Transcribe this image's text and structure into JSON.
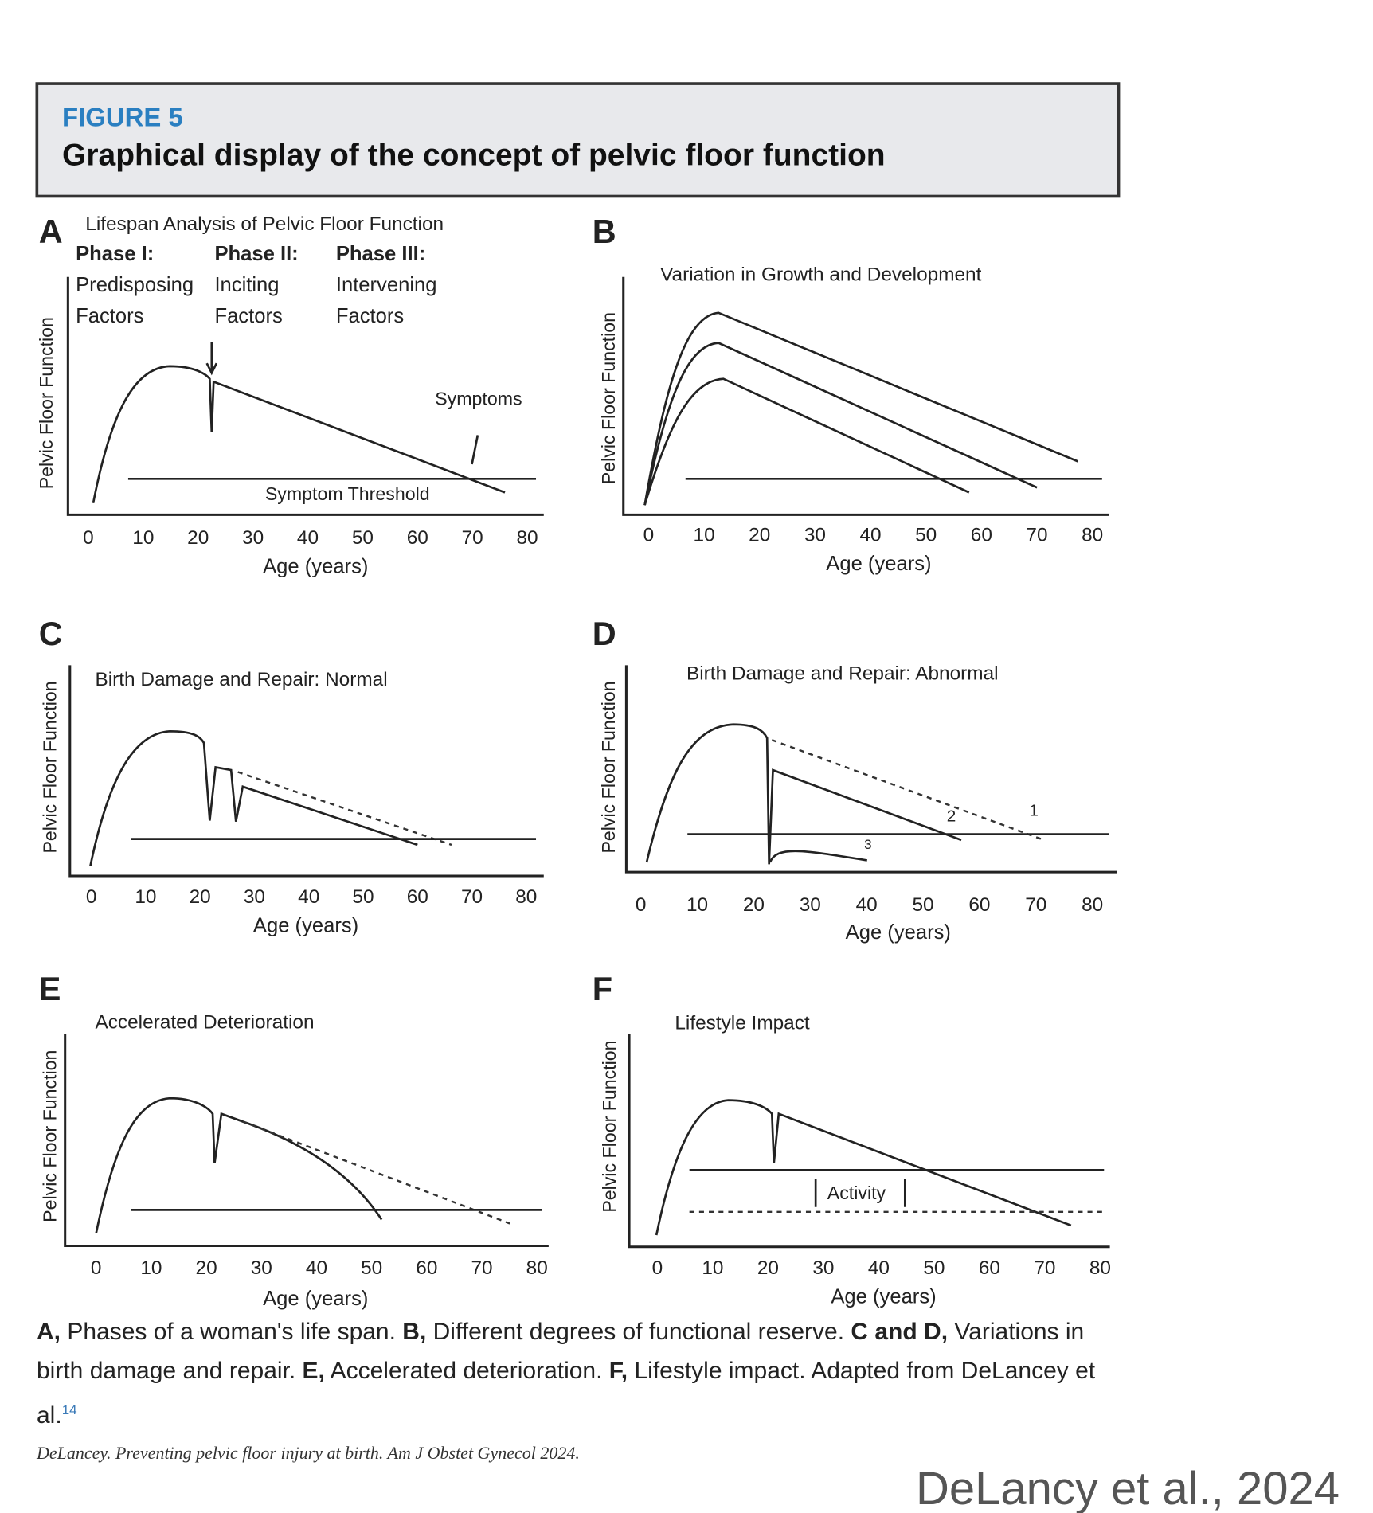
{
  "figure": {
    "label": "FIGURE 5",
    "title": "Graphical display of the concept of pelvic floor function"
  },
  "panels": [
    {
      "letter": "A",
      "title": "Lifespan Analysis of Pelvic Floor Function",
      "y_label": "Pelvic Floor Function",
      "x_label": "Age (years)",
      "x_ticks": [
        0,
        10,
        20,
        30,
        40,
        50,
        60,
        70,
        80
      ],
      "phases": [
        {
          "name": "Phase I:",
          "lines": [
            "Predisposing",
            "Factors"
          ]
        },
        {
          "name": "Phase II:",
          "lines": [
            "Inciting",
            "Factors"
          ]
        },
        {
          "name": "Phase III:",
          "lines": [
            "Intervening",
            "Factors"
          ]
        }
      ],
      "annotations": [
        "Symptoms",
        "Symptom Threshold"
      ]
    },
    {
      "letter": "B",
      "title": "Variation in Growth and Development",
      "y_label": "Pelvic Floor Function",
      "x_label": "Age (years)",
      "x_ticks": [
        0,
        10,
        20,
        30,
        40,
        50,
        60,
        70,
        80
      ]
    },
    {
      "letter": "C",
      "title": "Birth Damage and Repair: Normal",
      "y_label": "Pelvic Floor Function",
      "x_label": "Age (years)",
      "x_ticks": [
        0,
        10,
        20,
        30,
        40,
        50,
        60,
        70,
        80
      ]
    },
    {
      "letter": "D",
      "title": "Birth Damage and Repair: Abnormal",
      "y_label": "Pelvic Floor Function",
      "x_label": "Age (years)",
      "x_ticks": [
        0,
        10,
        20,
        30,
        40,
        50,
        60,
        70,
        80
      ],
      "annotations": [
        "1",
        "2",
        "3"
      ]
    },
    {
      "letter": "E",
      "title": "Accelerated Deterioration",
      "y_label": "Pelvic Floor Function",
      "x_label": "Age (years)",
      "x_ticks": [
        0,
        10,
        20,
        30,
        40,
        50,
        60,
        70,
        80
      ]
    },
    {
      "letter": "F",
      "title": "Lifestyle Impact",
      "y_label": "Pelvic Floor Function",
      "x_label": "Age (years)",
      "x_ticks": [
        0,
        10,
        20,
        30,
        40,
        50,
        60,
        70,
        80
      ],
      "annotations": [
        "Activity"
      ]
    }
  ],
  "caption": {
    "segments": [
      {
        "text": "A,",
        "bold": true
      },
      {
        "text": " Phases of a woman's life span. ",
        "bold": false
      },
      {
        "text": "B,",
        "bold": true
      },
      {
        "text": " Different degrees of functional reserve. ",
        "bold": false
      },
      {
        "text": "C and D,",
        "bold": true
      },
      {
        "text": " Variations in birth damage and repair. ",
        "bold": false
      },
      {
        "text": "E,",
        "bold": true
      },
      {
        "text": " Accelerated deterioration. ",
        "bold": false
      },
      {
        "text": "F,",
        "bold": true
      },
      {
        "text": " Lifestyle impact. Adapted from DeLancey et al.",
        "bold": false
      }
    ],
    "ref": "14"
  },
  "source": "DeLancey. Preventing pelvic floor injury at birth. Am J Obstet Gynecol 2024.",
  "watermark": "DeLancy et al., 2024"
}
